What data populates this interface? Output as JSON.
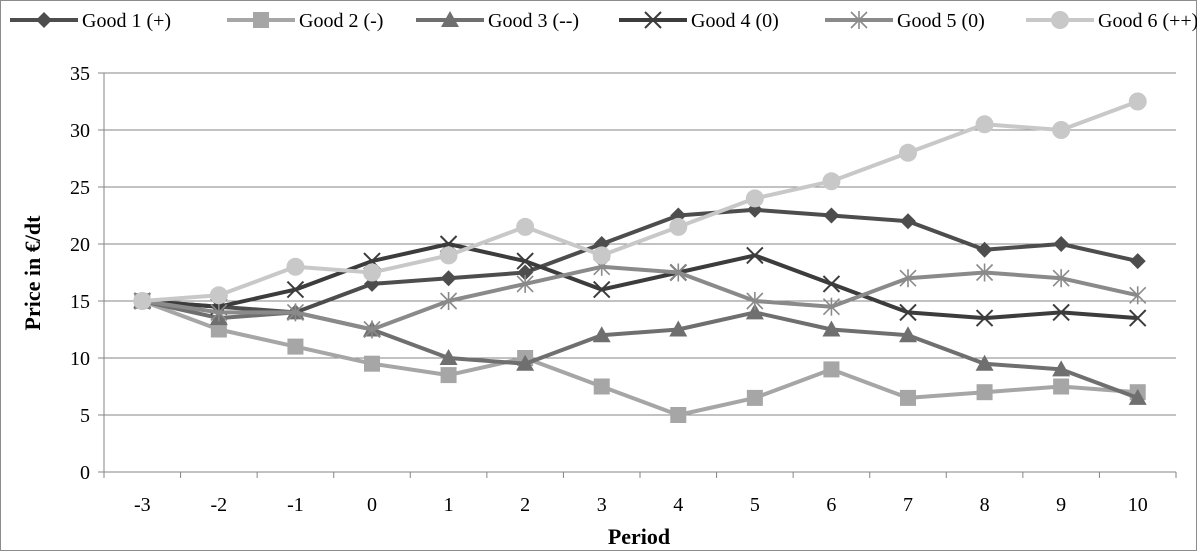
{
  "chart_data": {
    "type": "line",
    "title": "",
    "xlabel": "Period",
    "ylabel": "Price in €/dt",
    "x": [
      -3,
      -2,
      -1,
      0,
      1,
      2,
      3,
      4,
      5,
      6,
      7,
      8,
      9,
      10
    ],
    "ylim": [
      0,
      35
    ],
    "yticks": [
      0,
      5,
      10,
      15,
      20,
      25,
      30,
      35
    ],
    "grid": true,
    "legend_position": "top",
    "series": [
      {
        "name": "Good 1 (+)",
        "color": "#4d4d4d",
        "marker": "diamond",
        "values": [
          15,
          14.5,
          14,
          16.5,
          17,
          17.5,
          20,
          22.5,
          23,
          22.5,
          22,
          19.5,
          20,
          18.5
        ]
      },
      {
        "name": "Good 2 (-)",
        "color": "#a6a6a6",
        "marker": "square",
        "values": [
          15,
          12.5,
          11,
          9.5,
          8.5,
          10,
          7.5,
          5,
          6.5,
          9,
          6.5,
          7,
          7.5,
          7
        ]
      },
      {
        "name": "Good 3 (--)",
        "color": "#6f6f6f",
        "marker": "triangle",
        "values": [
          15,
          13.5,
          14,
          12.5,
          10,
          9.5,
          12,
          12.5,
          14,
          12.5,
          12,
          9.5,
          9,
          6.5
        ]
      },
      {
        "name": "Good 4 (0)",
        "color": "#3c3c3c",
        "marker": "x",
        "values": [
          15,
          14.5,
          16,
          18.5,
          20,
          18.5,
          16,
          17.5,
          19,
          16.5,
          14,
          13.5,
          14,
          13.5
        ]
      },
      {
        "name": "Good 5 (0)",
        "color": "#8a8a8a",
        "marker": "star",
        "values": [
          15,
          14,
          14,
          12.5,
          15,
          16.5,
          18,
          17.5,
          15,
          14.5,
          17,
          17.5,
          17,
          15.5
        ]
      },
      {
        "name": "Good 6 (++)",
        "color": "#c8c8c8",
        "marker": "circle",
        "values": [
          15,
          15.5,
          18,
          17.5,
          19,
          21.5,
          19,
          21.5,
          24,
          25.5,
          28,
          30.5,
          30,
          32.5
        ]
      }
    ]
  }
}
